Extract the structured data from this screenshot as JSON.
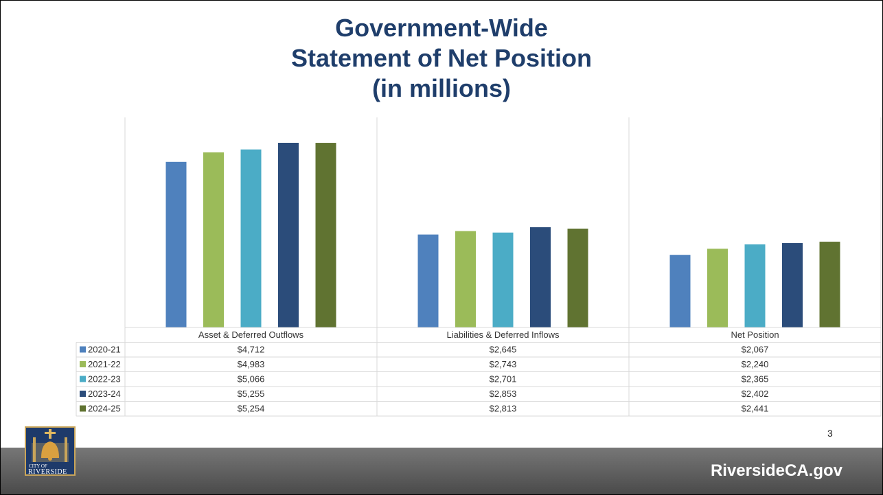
{
  "slide": {
    "title_lines": [
      "Government-Wide",
      "Statement of Net Position",
      "(in millions)"
    ],
    "page_number": "3",
    "footer_url": "RiversideCA.gov",
    "logo_line1": "CITY OF",
    "logo_line2": "RIVERSIDE"
  },
  "colors": {
    "title": "#1f3e6b",
    "series": [
      "#4f81bd",
      "#9bbb59",
      "#4bacc6",
      "#2b4c7a",
      "#607331"
    ]
  },
  "chart_data": {
    "type": "bar",
    "title": "Government-Wide Statement of Net Position (in millions)",
    "categories": [
      "Asset & Deferred Outflows",
      "Liabilities & Deferred Inflows",
      "Net Position"
    ],
    "series": [
      {
        "name": "2020-21",
        "values": [
          4712,
          2645,
          2067
        ],
        "labels": [
          "$4,712",
          "$2,645",
          "$2,067"
        ]
      },
      {
        "name": "2021-22",
        "values": [
          4983,
          2743,
          2240
        ],
        "labels": [
          "$4,983",
          "$2,743",
          "$2,240"
        ]
      },
      {
        "name": "2022-23",
        "values": [
          5066,
          2701,
          2365
        ],
        "labels": [
          "$5,066",
          "$2,701",
          "$2,365"
        ]
      },
      {
        "name": "2023-24",
        "values": [
          5255,
          2853,
          2402
        ],
        "labels": [
          "$5,255",
          "$2,853",
          "$2,402"
        ]
      },
      {
        "name": "2024-25",
        "values": [
          5254,
          2813,
          2441
        ],
        "labels": [
          "$5,254",
          "$2,813",
          "$2,441"
        ]
      }
    ],
    "ylim": [
      0,
      5500
    ],
    "grid": false,
    "legend": "data-table"
  }
}
